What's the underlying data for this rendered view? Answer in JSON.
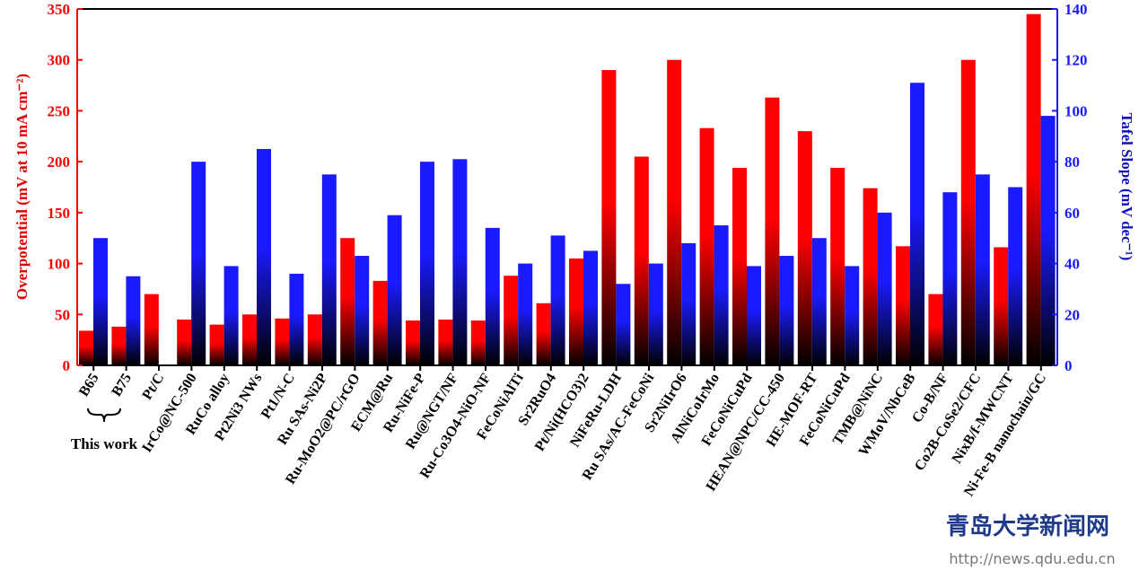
{
  "chart_data": {
    "type": "bar",
    "y_label": "Overpotential (mV at 10 mA cm⁻²)",
    "y2_label": "Tafel Slope (mV dec⁻¹)",
    "annotation": "This work",
    "categories": [
      "B65",
      "B75",
      "Pt/C",
      "IrCo@NC-500",
      "RuCo alloy",
      "Pt2Ni3 NWs",
      "Pt1/N-C",
      "Ru SAs-Ni2P",
      "Ru-MoO2@PC/rGO",
      "ECM@Ru",
      "Ru-NiFe-P",
      "Ru@NGT/NF",
      "Ru-Co3O4-NiO-NF",
      "FeCoNiAlTi",
      "Sr2RuO4",
      "Pt/Ni(HCO3)2",
      "NiFeRu-LDH",
      "Ru SAs/AC-FeCoNi",
      "Sr2NiIrO6",
      "AlNiCoIrMo",
      "FeCoNiCuPd",
      "HEAN@NPC/CC-450",
      "HE-MOF-RT",
      "FeCoNiCuPd",
      "TMB@NiNC",
      "WMoV/NbCeB",
      "Co-B/NF",
      "Co2B-CoSe2/CFC",
      "NixB/f-MWCNT",
      "Ni-Fe-B nanochain/GC"
    ],
    "series": [
      {
        "name": "Overpotential",
        "color": "#ff0000",
        "values": [
          34,
          38,
          70,
          45,
          40,
          50,
          46,
          50,
          125,
          83,
          44,
          45,
          44,
          88,
          61,
          105,
          290,
          205,
          300,
          233,
          194,
          263,
          230,
          194,
          174,
          117,
          70,
          300,
          116,
          345
        ]
      },
      {
        "name": "Tafel Slope",
        "color": "#1a1aff",
        "axis": "y2",
        "values": [
          50,
          35,
          null,
          80,
          39,
          85,
          36,
          75,
          43,
          59,
          80,
          81,
          54,
          40,
          51,
          45,
          32,
          40,
          48,
          55,
          39,
          43,
          50,
          39,
          60,
          111,
          68,
          75,
          70,
          98
        ]
      }
    ],
    "ylim": [
      0,
      350
    ],
    "yticks": [
      0,
      50,
      100,
      150,
      200,
      250,
      300,
      350
    ],
    "y2lim": [
      0,
      140
    ],
    "y2ticks": [
      0,
      20,
      40,
      60,
      80,
      100,
      120,
      140
    ],
    "watermark": [
      "青岛大学新闻网",
      "http://news.qdu.edu.cn"
    ]
  }
}
